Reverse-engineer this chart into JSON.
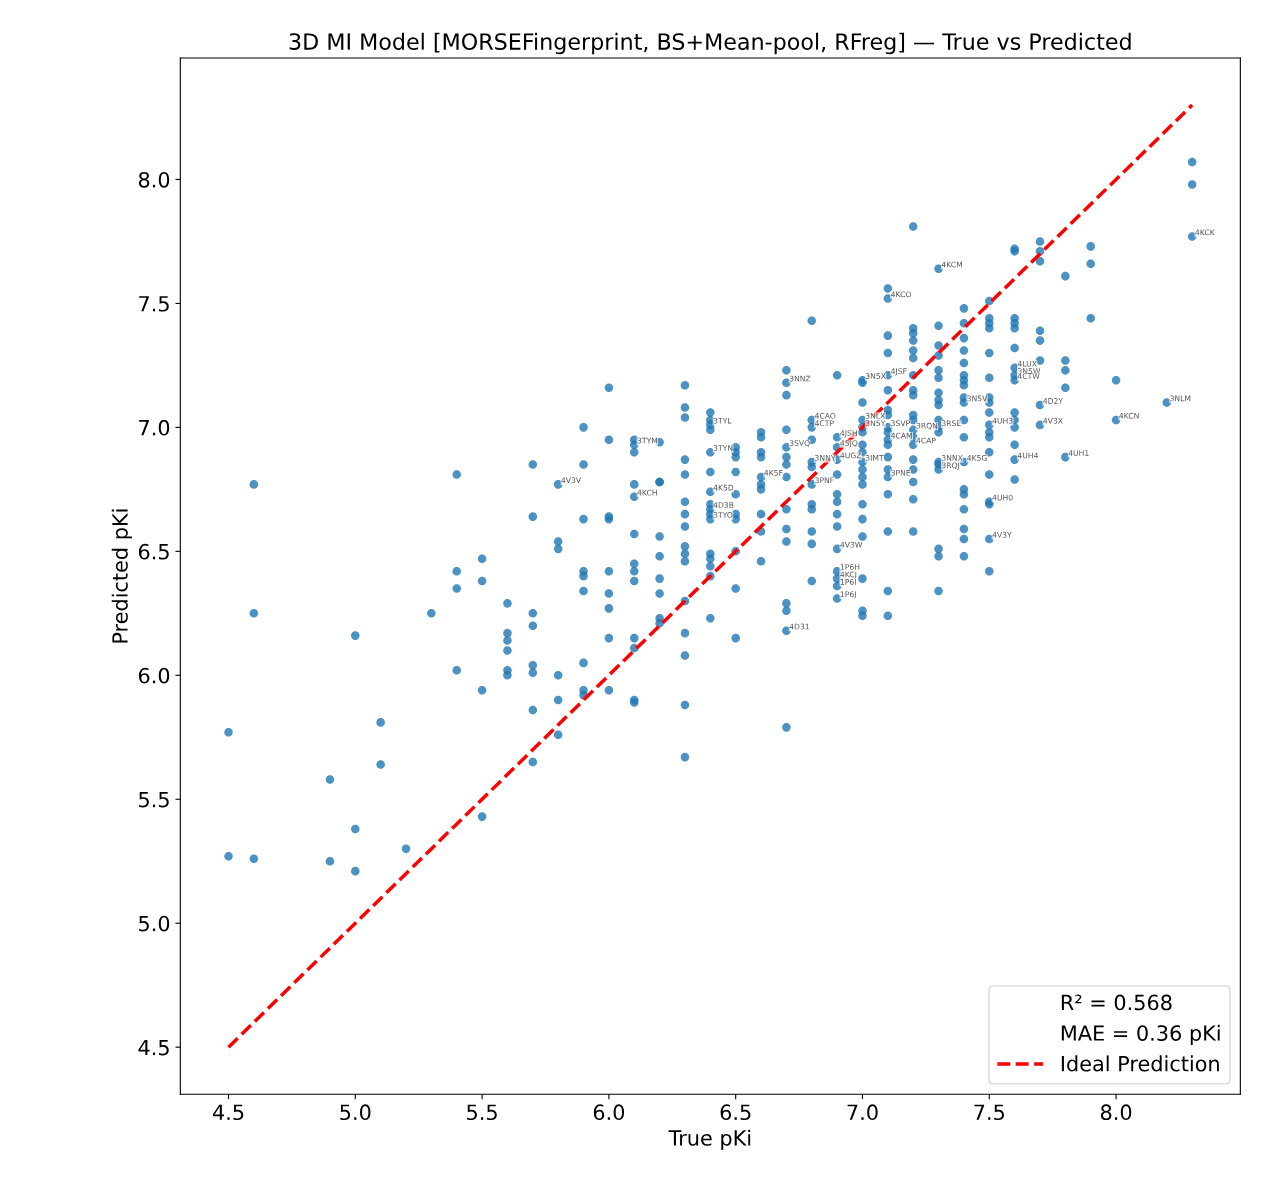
{
  "chart_data": {
    "type": "scatter",
    "title": "3D MI Model [MORSEFingerprint, BS+Mean-pool, RFreg] — True vs Predicted",
    "xlabel": "True pKi",
    "ylabel": "Predicted pKi",
    "xlim": [
      4.31,
      8.49
    ],
    "ylim": [
      4.31,
      8.49
    ],
    "xticks": [
      4.5,
      {
        "value": 5,
        "label": "5.0"
      },
      5.5,
      {
        "value": 6,
        "label": "6.0"
      },
      6.5,
      {
        "value": 7,
        "label": "7.0"
      },
      7.5,
      {
        "value": 8,
        "label": "8.0"
      }
    ],
    "yticks": [
      4.5,
      {
        "value": 5,
        "label": "5.0"
      },
      5.5,
      {
        "value": 6,
        "label": "6.0"
      },
      6.5,
      {
        "value": 7,
        "label": "7.0"
      },
      7.5,
      {
        "value": 8,
        "label": "8.0"
      }
    ],
    "grid": false,
    "legend": "bottom right",
    "marker": "circle",
    "series": [
      {
        "color": "#1f77b4",
        "x": [
          4.5,
          4.5,
          4.6,
          4.6,
          4.6,
          4.9,
          4.9,
          5.0,
          5.0,
          5.0,
          5.1,
          5.1,
          5.2,
          5.3,
          5.4,
          5.4,
          5.4,
          5.4,
          5.5,
          5.5,
          5.5,
          5.5,
          5.6,
          5.6,
          5.6,
          5.6,
          5.6,
          5.6,
          5.7,
          5.7,
          5.7,
          5.7,
          5.7,
          5.7,
          5.7,
          5.7,
          5.8,
          5.8,
          5.8,
          5.8,
          5.8,
          5.8,
          5.9,
          5.9,
          5.9,
          5.9,
          5.9,
          5.9,
          5.9,
          5.9,
          5.9,
          6.0,
          6.0,
          6.0,
          6.0,
          6.0,
          6.0,
          6.0,
          6.0,
          6.0,
          6.1,
          6.1,
          6.1,
          6.1,
          6.1,
          6.1,
          6.1,
          6.1,
          6.1,
          6.1,
          6.1,
          6.1,
          6.1,
          6.2,
          6.2,
          6.2,
          6.2,
          6.2,
          6.2,
          6.2,
          6.2,
          6.2,
          6.3,
          6.3,
          6.3,
          6.3,
          6.3,
          6.3,
          6.3,
          6.3,
          6.3,
          6.3,
          6.3,
          6.3,
          6.3,
          6.3,
          6.3,
          6.3,
          6.4,
          6.4,
          6.4,
          6.4,
          6.4,
          6.4,
          6.4,
          6.4,
          6.4,
          6.4,
          6.4,
          6.4,
          6.4,
          6.4,
          6.4,
          6.4,
          6.5,
          6.5,
          6.5,
          6.5,
          6.5,
          6.5,
          6.5,
          6.5,
          6.5,
          6.5,
          6.6,
          6.6,
          6.6,
          6.6,
          6.6,
          6.6,
          6.6,
          6.6,
          6.6,
          6.6,
          6.7,
          6.7,
          6.7,
          6.7,
          6.7,
          6.7,
          6.7,
          6.7,
          6.7,
          6.7,
          6.7,
          6.7,
          6.7,
          6.7,
          6.7,
          6.8,
          6.8,
          6.8,
          6.8,
          6.8,
          6.8,
          6.8,
          6.8,
          6.8,
          6.8,
          6.8,
          6.8,
          6.9,
          6.9,
          6.9,
          6.9,
          6.9,
          6.9,
          6.9,
          6.9,
          6.9,
          6.9,
          6.9,
          6.9,
          6.9,
          6.9,
          7.0,
          7.0,
          7.0,
          7.0,
          7.0,
          7.0,
          7.0,
          7.0,
          7.0,
          7.0,
          7.0,
          7.0,
          7.0,
          7.0,
          7.0,
          7.0,
          7.0,
          7.0,
          7.1,
          7.1,
          7.1,
          7.1,
          7.1,
          7.1,
          7.1,
          7.1,
          7.1,
          7.1,
          7.1,
          7.1,
          7.1,
          7.1,
          7.1,
          7.1,
          7.1,
          7.1,
          7.1,
          7.2,
          7.2,
          7.2,
          7.2,
          7.2,
          7.2,
          7.2,
          7.2,
          7.2,
          7.2,
          7.2,
          7.2,
          7.2,
          7.2,
          7.2,
          7.2,
          7.2,
          7.2,
          7.2,
          7.3,
          7.3,
          7.3,
          7.3,
          7.3,
          7.3,
          7.3,
          7.3,
          7.3,
          7.3,
          7.3,
          7.3,
          7.3,
          7.3,
          7.3,
          7.3,
          7.3,
          7.3,
          7.4,
          7.4,
          7.4,
          7.4,
          7.4,
          7.4,
          7.4,
          7.4,
          7.4,
          7.4,
          7.4,
          7.4,
          7.4,
          7.4,
          7.4,
          7.4,
          7.4,
          7.4,
          7.4,
          7.5,
          7.5,
          7.5,
          7.5,
          7.5,
          7.5,
          7.5,
          7.5,
          7.5,
          7.5,
          7.5,
          7.5,
          7.5,
          7.5,
          7.5,
          7.5,
          7.5,
          7.5,
          7.6,
          7.6,
          7.6,
          7.6,
          7.6,
          7.6,
          7.6,
          7.6,
          7.6,
          7.6,
          7.6,
          7.6,
          7.6,
          7.6,
          7.6,
          7.7,
          7.7,
          7.7,
          7.7,
          7.7,
          7.7,
          7.7,
          7.7,
          7.8,
          7.8,
          7.8,
          7.8,
          7.8,
          7.9,
          7.9,
          7.9,
          8.0,
          8.0,
          8.2,
          8.3,
          8.3,
          8.3
        ],
        "values": [
          5.77,
          5.27,
          6.77,
          6.25,
          5.26,
          5.58,
          5.25,
          6.16,
          5.38,
          5.21,
          5.81,
          5.64,
          5.3,
          6.25,
          6.81,
          6.42,
          6.35,
          6.02,
          6.47,
          6.38,
          5.94,
          5.43,
          6.29,
          6.17,
          6.14,
          6.1,
          6.02,
          6.0,
          6.85,
          6.64,
          6.25,
          6.2,
          6.04,
          6.01,
          5.86,
          5.65,
          6.77,
          6.54,
          6.51,
          6.0,
          5.9,
          5.76,
          7.0,
          6.85,
          6.63,
          6.42,
          6.4,
          6.34,
          6.05,
          5.94,
          5.92,
          7.16,
          6.95,
          6.64,
          6.63,
          6.42,
          6.33,
          6.27,
          6.15,
          5.94,
          6.95,
          6.93,
          6.9,
          6.77,
          6.72,
          6.57,
          6.45,
          6.42,
          6.38,
          6.15,
          6.11,
          5.9,
          5.89,
          6.94,
          6.78,
          6.56,
          6.48,
          6.39,
          6.33,
          6.23,
          6.21,
          6.78,
          7.17,
          7.08,
          7.04,
          6.87,
          6.81,
          6.7,
          6.65,
          6.6,
          6.52,
          6.49,
          6.46,
          6.3,
          6.17,
          6.08,
          5.88,
          5.67,
          7.06,
          7.03,
          7.01,
          6.99,
          6.9,
          6.82,
          6.74,
          6.69,
          6.67,
          6.65,
          6.63,
          6.49,
          6.47,
          6.44,
          6.4,
          6.23,
          6.92,
          6.9,
          6.88,
          6.82,
          6.73,
          6.65,
          6.63,
          6.5,
          6.35,
          6.15,
          6.98,
          6.96,
          6.9,
          6.88,
          6.8,
          6.77,
          6.75,
          6.65,
          6.58,
          6.46,
          7.23,
          7.18,
          7.13,
          6.99,
          6.92,
          6.88,
          6.85,
          6.8,
          6.67,
          6.59,
          6.54,
          6.29,
          6.26,
          6.18,
          5.79,
          7.43,
          7.03,
          7.0,
          6.95,
          6.86,
          6.84,
          6.77,
          6.69,
          6.67,
          6.58,
          6.53,
          6.38,
          7.21,
          6.96,
          6.92,
          6.87,
          6.81,
          6.73,
          6.7,
          6.65,
          6.6,
          6.51,
          6.42,
          6.39,
          6.36,
          6.31,
          7.19,
          7.18,
          7.1,
          7.03,
          7.0,
          6.98,
          6.93,
          6.9,
          6.86,
          6.83,
          6.8,
          6.77,
          6.69,
          6.63,
          6.56,
          6.39,
          6.26,
          6.24,
          7.56,
          7.52,
          7.37,
          7.3,
          7.21,
          7.15,
          7.07,
          7.05,
          7.0,
          6.98,
          6.95,
          6.93,
          6.88,
          6.83,
          6.8,
          6.73,
          6.58,
          6.34,
          6.24,
          7.81,
          7.4,
          7.38,
          7.35,
          7.31,
          7.28,
          7.21,
          7.15,
          7.13,
          7.05,
          7.03,
          6.99,
          6.96,
          6.93,
          6.87,
          6.83,
          6.78,
          6.71,
          6.58,
          7.64,
          7.41,
          7.33,
          7.29,
          7.23,
          7.2,
          7.14,
          7.11,
          7.09,
          7.03,
          7.0,
          6.98,
          6.86,
          6.85,
          6.83,
          6.51,
          6.48,
          6.34,
          7.48,
          7.42,
          7.36,
          7.31,
          7.26,
          7.21,
          7.19,
          7.17,
          7.12,
          7.1,
          7.03,
          6.96,
          6.86,
          6.75,
          6.73,
          6.67,
          6.59,
          6.55,
          6.48,
          7.51,
          7.44,
          7.42,
          7.4,
          7.3,
          7.2,
          7.12,
          7.1,
          7.06,
          7.01,
          6.98,
          6.96,
          6.9,
          6.81,
          6.7,
          6.69,
          6.55,
          6.42,
          7.72,
          7.71,
          7.44,
          7.42,
          7.4,
          7.32,
          7.24,
          7.21,
          7.19,
          7.06,
          7.03,
          7.0,
          6.93,
          6.87,
          6.79,
          7.75,
          7.71,
          7.67,
          7.39,
          7.35,
          7.27,
          7.09,
          7.01,
          7.61,
          7.27,
          7.23,
          7.16,
          6.88,
          7.73,
          7.66,
          7.44,
          7.19,
          7.03,
          7.1,
          8.07,
          7.98,
          7.77
        ]
      },
      {
        "type": "line",
        "name": "Ideal Prediction",
        "color": "#ff0000",
        "line_style": "dashed",
        "marker": "none",
        "x": [
          4.5,
          8.3
        ],
        "values": [
          4.5,
          8.3
        ]
      }
    ],
    "annotations": [
      "R² = 0.568",
      "MAE = 0.36 pKi",
      {
        "text": "4KCK",
        "x": 8.3,
        "y": 7.77
      },
      {
        "text": "4KCM",
        "x": 7.3,
        "y": 7.64
      },
      {
        "text": "4KCO",
        "x": 7.1,
        "y": 7.52
      },
      {
        "text": "3NLM",
        "x": 8.2,
        "y": 7.1
      },
      {
        "text": "4KCN",
        "x": 8.0,
        "y": 7.03
      },
      {
        "text": "4UH1",
        "x": 7.8,
        "y": 6.88
      },
      {
        "text": "4D2Y",
        "x": 7.7,
        "y": 7.09
      },
      {
        "text": "4V3X",
        "x": 7.7,
        "y": 7.01
      },
      {
        "text": "4LUX",
        "x": 7.6,
        "y": 7.24
      },
      {
        "text": "3N5W",
        "x": 7.6,
        "y": 7.21
      },
      {
        "text": "4CTW",
        "x": 7.6,
        "y": 7.19
      },
      {
        "text": "4UH4",
        "x": 7.6,
        "y": 6.87
      },
      {
        "text": "4UH3",
        "x": 7.5,
        "y": 7.01
      },
      {
        "text": "4UH0",
        "x": 7.5,
        "y": 6.7
      },
      {
        "text": "4V3Y",
        "x": 7.5,
        "y": 6.55
      },
      {
        "text": "3N5V",
        "x": 7.4,
        "y": 7.1
      },
      {
        "text": "4K5G",
        "x": 7.4,
        "y": 6.86
      },
      {
        "text": "3RSE",
        "x": 7.3,
        "y": 7.0
      },
      {
        "text": "3NNX",
        "x": 7.3,
        "y": 6.86
      },
      {
        "text": "3RQJ",
        "x": 7.3,
        "y": 6.83
      },
      {
        "text": "3RQN",
        "x": 7.2,
        "y": 6.99
      },
      {
        "text": "4CAP",
        "x": 7.2,
        "y": 6.93
      },
      {
        "text": "4JSF",
        "x": 7.1,
        "y": 7.21
      },
      {
        "text": "3SVP",
        "x": 7.1,
        "y": 7.0
      },
      {
        "text": "4CAM",
        "x": 7.1,
        "y": 6.95
      },
      {
        "text": "3PNE",
        "x": 7.1,
        "y": 6.8
      },
      {
        "text": "3N5X",
        "x": 7.0,
        "y": 7.19
      },
      {
        "text": "3NLX",
        "x": 7.0,
        "y": 7.03
      },
      {
        "text": "3N5Y",
        "x": 7.0,
        "y": 7.0
      },
      {
        "text": "3IMT",
        "x": 7.0,
        "y": 6.86
      },
      {
        "text": "4JSH",
        "x": 6.9,
        "y": 6.96
      },
      {
        "text": "4SJQ",
        "x": 6.9,
        "y": 6.92
      },
      {
        "text": "4UGZ",
        "x": 6.9,
        "y": 6.87
      },
      {
        "text": "4V3W",
        "x": 6.9,
        "y": 6.51
      },
      {
        "text": "1P6H",
        "x": 6.9,
        "y": 6.42
      },
      {
        "text": "4KCJ",
        "x": 6.9,
        "y": 6.39
      },
      {
        "text": "1P6I",
        "x": 6.9,
        "y": 6.36
      },
      {
        "text": "1P6J",
        "x": 6.9,
        "y": 6.31
      },
      {
        "text": "4CAO",
        "x": 6.8,
        "y": 7.03
      },
      {
        "text": "4CTP",
        "x": 6.8,
        "y": 7.0
      },
      {
        "text": "3NNY",
        "x": 6.8,
        "y": 6.86
      },
      {
        "text": "3PNF",
        "x": 6.8,
        "y": 6.77
      },
      {
        "text": "3NNZ",
        "x": 6.7,
        "y": 7.18
      },
      {
        "text": "3SVQ",
        "x": 6.7,
        "y": 6.92
      },
      {
        "text": "4D31",
        "x": 6.7,
        "y": 6.18
      },
      {
        "text": "4K5F",
        "x": 6.6,
        "y": 6.8
      },
      {
        "text": "3TYL",
        "x": 6.4,
        "y": 7.01
      },
      {
        "text": "3TYN",
        "x": 6.4,
        "y": 6.9
      },
      {
        "text": "4K5D",
        "x": 6.4,
        "y": 6.74
      },
      {
        "text": "4D3B",
        "x": 6.4,
        "y": 6.67
      },
      {
        "text": "3TYO",
        "x": 6.4,
        "y": 6.63
      },
      {
        "text": "3TYM",
        "x": 6.1,
        "y": 6.93
      },
      {
        "text": "4KCH",
        "x": 6.1,
        "y": 6.72
      },
      {
        "text": "4V3V",
        "x": 5.8,
        "y": 6.77
      }
    ]
  }
}
